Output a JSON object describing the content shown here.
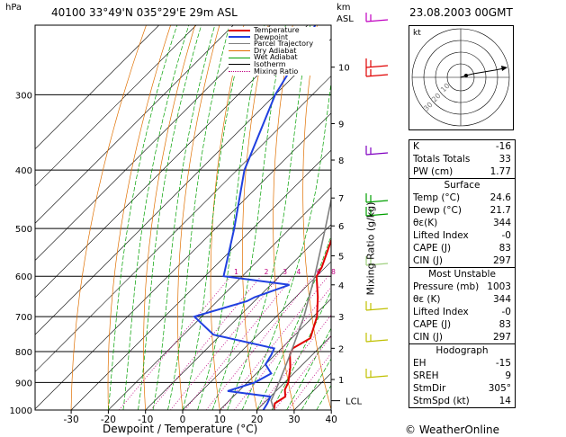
{
  "header": {
    "hpa_label": "hPa",
    "station": "40100  33°49'N  035°29'E    29m  ASL",
    "km_label": "km",
    "asl_label": "ASL",
    "datetime": "23.08.2003  00GMT"
  },
  "legend": [
    "Temperature",
    "Dewpoint",
    "Parcel Trajectory",
    "Dry Adiabat",
    "Wet Adiabat",
    "Isotherm",
    "Mixing Ratio"
  ],
  "colors": {
    "temperature": "#e00000",
    "dewpoint": "#2040e0",
    "parcel": "#808080",
    "dry_adiabat": "#e07000",
    "wet_adiabat": "#00a000",
    "isotherm": "#000000",
    "mixing_ratio": "#c00080"
  },
  "chart_data": {
    "type": "line",
    "title": "",
    "xlabel": "Dewpoint / Temperature (°C)",
    "ylabel": "",
    "x_ticks": [
      -30,
      -20,
      -10,
      0,
      10,
      20,
      30,
      40
    ],
    "pressure_ticks": [
      300,
      400,
      500,
      600,
      700,
      800,
      900,
      1000
    ],
    "km_ticks": [
      "10",
      "9",
      "8",
      "7",
      "6",
      "5",
      "4",
      "3",
      "2",
      "1"
    ],
    "km_tick_pressures": [
      270,
      335,
      385,
      445,
      495,
      555,
      620,
      700,
      790,
      890
    ],
    "lcl_label": "LCL",
    "lcl_pressure": 965,
    "mixing_ratio_axis_label": "Mixing Ratio (g/kg)",
    "mixing_ratio_labels": [
      "1",
      "2",
      "3",
      "4",
      "6",
      "8",
      "10",
      "15",
      "20",
      "25"
    ],
    "mixing_ratio_values": [
      1,
      2,
      3,
      4,
      6,
      8,
      10,
      15,
      20,
      25
    ],
    "series": [
      {
        "name": "Temperature",
        "points": [
          [
            1000,
            24.6
          ],
          [
            975,
            23
          ],
          [
            950,
            24
          ],
          [
            925,
            22
          ],
          [
            900,
            21
          ],
          [
            850,
            17.5
          ],
          [
            810,
            14
          ],
          [
            790,
            13
          ],
          [
            760,
            15
          ],
          [
            700,
            11
          ],
          [
            650,
            6
          ],
          [
            600,
            0
          ],
          [
            580,
            -1
          ],
          [
            520,
            -6
          ],
          [
            500,
            -7.5
          ],
          [
            400,
            -18.5
          ],
          [
            350,
            -27
          ],
          [
            300,
            -35
          ],
          [
            250,
            -45
          ],
          [
            230,
            -50
          ]
        ]
      },
      {
        "name": "Dewpoint",
        "points": [
          [
            1000,
            21.7
          ],
          [
            975,
            21
          ],
          [
            950,
            20
          ],
          [
            930,
            7
          ],
          [
            900,
            12
          ],
          [
            870,
            14
          ],
          [
            840,
            10
          ],
          [
            810,
            9
          ],
          [
            790,
            8
          ],
          [
            750,
            -12
          ],
          [
            700,
            -22
          ],
          [
            660,
            -12
          ],
          [
            650,
            -11
          ],
          [
            620,
            -5
          ],
          [
            600,
            -25
          ],
          [
            500,
            -35
          ],
          [
            400,
            -48
          ],
          [
            300,
            -60
          ],
          [
            250,
            -65
          ],
          [
            230,
            -68
          ]
        ]
      },
      {
        "name": "Parcel Trajectory",
        "points": [
          [
            1000,
            24.6
          ],
          [
            965,
            21.3
          ],
          [
            900,
            18.5
          ],
          [
            800,
            13.5
          ],
          [
            700,
            7.5
          ],
          [
            600,
            -0.5
          ],
          [
            500,
            -10.5
          ],
          [
            400,
            -23
          ],
          [
            300,
            -40
          ],
          [
            250,
            -51
          ],
          [
            230,
            -56
          ]
        ]
      }
    ]
  },
  "hodograph": {
    "unit_label": "kt",
    "ring_labels": [
      "10",
      "20",
      "30"
    ]
  },
  "indices": {
    "rows": [
      {
        "label": "K",
        "value": "-16"
      },
      {
        "label": "Totals Totals",
        "value": "33"
      },
      {
        "label": "PW (cm)",
        "value": "1.77"
      }
    ]
  },
  "surface": {
    "title": "Surface",
    "rows": [
      {
        "label": "Temp (°C)",
        "value": "24.6"
      },
      {
        "label": "Dewp (°C)",
        "value": "21.7"
      },
      {
        "label": "θε(K)",
        "value": "344"
      },
      {
        "label": "Lifted Index",
        "value": "-0"
      },
      {
        "label": "CAPE (J)",
        "value": "83"
      },
      {
        "label": "CIN (J)",
        "value": "297"
      }
    ]
  },
  "unstable": {
    "title": "Most Unstable",
    "rows": [
      {
        "label": "Pressure (mb)",
        "value": "1003"
      },
      {
        "label": "θε (K)",
        "value": "344"
      },
      {
        "label": "Lifted Index",
        "value": "-0"
      },
      {
        "label": "CAPE (J)",
        "value": "83"
      },
      {
        "label": "CIN (J)",
        "value": "297"
      }
    ]
  },
  "hodo_table": {
    "title": "Hodograph",
    "rows": [
      {
        "label": "EH",
        "value": "-15"
      },
      {
        "label": "SREH",
        "value": "9"
      },
      {
        "label": "StmDir",
        "value": "305°"
      },
      {
        "label": "StmSpd (kt)",
        "value": "14"
      }
    ]
  },
  "footer": {
    "copyright": "© WeatherOnline"
  }
}
